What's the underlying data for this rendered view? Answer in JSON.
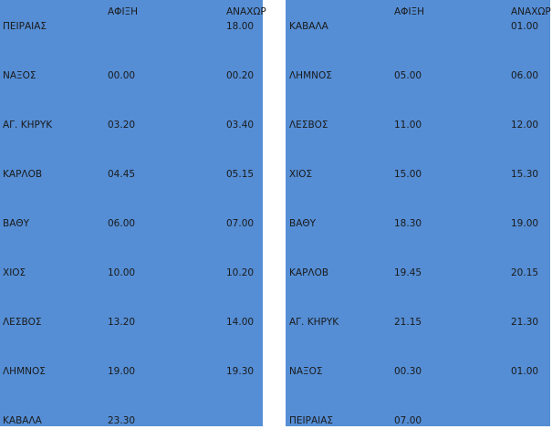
{
  "colors": {
    "table_bg": "#558ED5"
  },
  "tables": [
    {
      "headers": [
        "",
        "ΑΦΙΞΗ",
        "ΑΝΑΧΩΡ"
      ],
      "rows": [
        [
          "ΠΕΙΡΑΙΑΣ",
          "",
          "18.00"
        ],
        [
          "ΝΑΞΟΣ",
          "00.00",
          "00.20"
        ],
        [
          "ΑΓ. ΚΗΡΥΚ",
          "03.20",
          "03.40"
        ],
        [
          "ΚΑΡΛΟΒ",
          "04.45",
          "05.15"
        ],
        [
          "ΒΑΘΥ",
          "06.00",
          "07.00"
        ],
        [
          "ΧΙΟΣ",
          "10.00",
          "10.20"
        ],
        [
          "ΛΕΣΒΟΣ",
          "13.20",
          "14.00"
        ],
        [
          "ΛΗΜΝΟΣ",
          "19.00",
          "19.30"
        ],
        [
          "ΚΑΒΑΛΑ",
          "23.30",
          ""
        ]
      ]
    },
    {
      "headers": [
        "",
        "ΑΦΙΞΗ",
        "ΑΝΑΧΩΡ"
      ],
      "rows": [
        [
          "ΚΑΒΑΛΑ",
          "",
          "01.00"
        ],
        [
          "ΛΗΜΝΟΣ",
          "05.00",
          "06.00"
        ],
        [
          "ΛΕΣΒΟΣ",
          "11.00",
          "12.00"
        ],
        [
          "ΧΙΟΣ",
          "15.00",
          "15.30"
        ],
        [
          "ΒΑΘΥ",
          "18.30",
          "19.00"
        ],
        [
          "ΚΑΡΛΟΒ",
          "19.45",
          "20.15"
        ],
        [
          "ΑΓ. ΚΗΡΥΚ",
          "21.15",
          "21.30"
        ],
        [
          "ΝΑΞΟΣ",
          "00.30",
          "01.00"
        ],
        [
          "ΠΕΙΡΑΙΑΣ",
          "07.00",
          ""
        ]
      ]
    }
  ]
}
